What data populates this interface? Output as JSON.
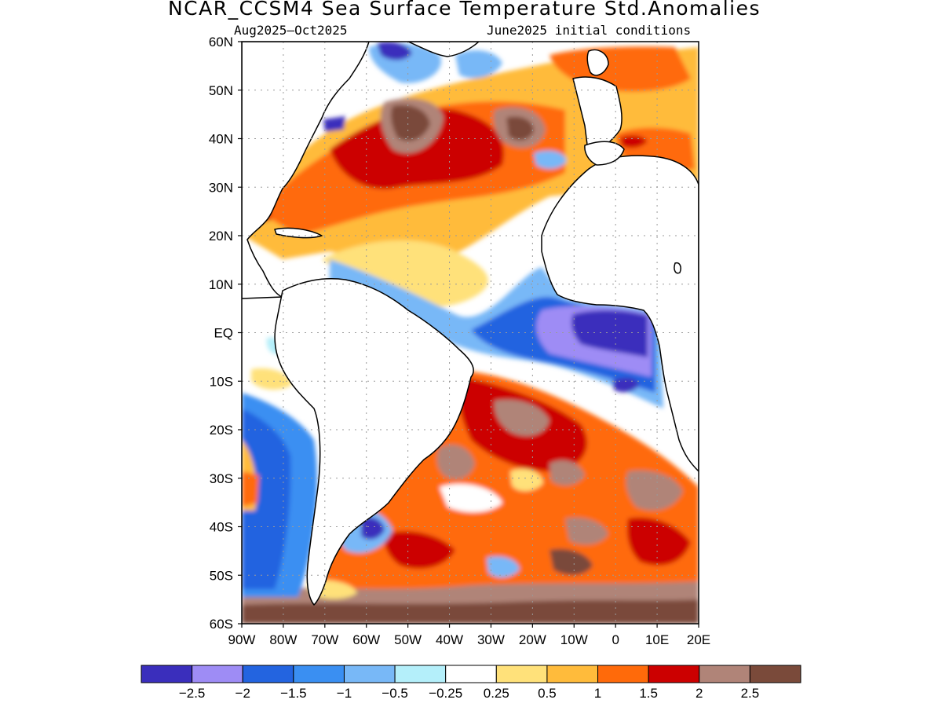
{
  "header": {
    "title": "NCAR_CCSM4 Sea Surface Temperature Std.Anomalies",
    "period": "Aug2025–Oct2025",
    "initial_conditions": "June2025 initial conditions"
  },
  "map": {
    "lat_ticks": [
      "60N",
      "50N",
      "40N",
      "30N",
      "20N",
      "10N",
      "EQ",
      "10S",
      "20S",
      "30S",
      "40S",
      "50S",
      "60S"
    ],
    "lon_ticks": [
      "90W",
      "80W",
      "70W",
      "60W",
      "50W",
      "40W",
      "30W",
      "20W",
      "10W",
      "0",
      "10E",
      "20E"
    ],
    "lat_range": [
      -60,
      60
    ],
    "lon_range": [
      -90,
      20
    ],
    "grid": true
  },
  "legend": {
    "colors": [
      "#3a2ebc",
      "#9e8cf5",
      "#2364e0",
      "#3a8ff2",
      "#78b8f7",
      "#b4effa",
      "#ffffff",
      "#ffe17a",
      "#ffbb3b",
      "#ff6a0a",
      "#cc0000",
      "#b08478",
      "#7a4a3a"
    ],
    "labels": [
      "−2.5",
      "−2",
      "−1.5",
      "−1",
      "−0.5",
      "−0.25",
      "0.25",
      "0.5",
      "1",
      "1.5",
      "2",
      "2.5"
    ]
  }
}
